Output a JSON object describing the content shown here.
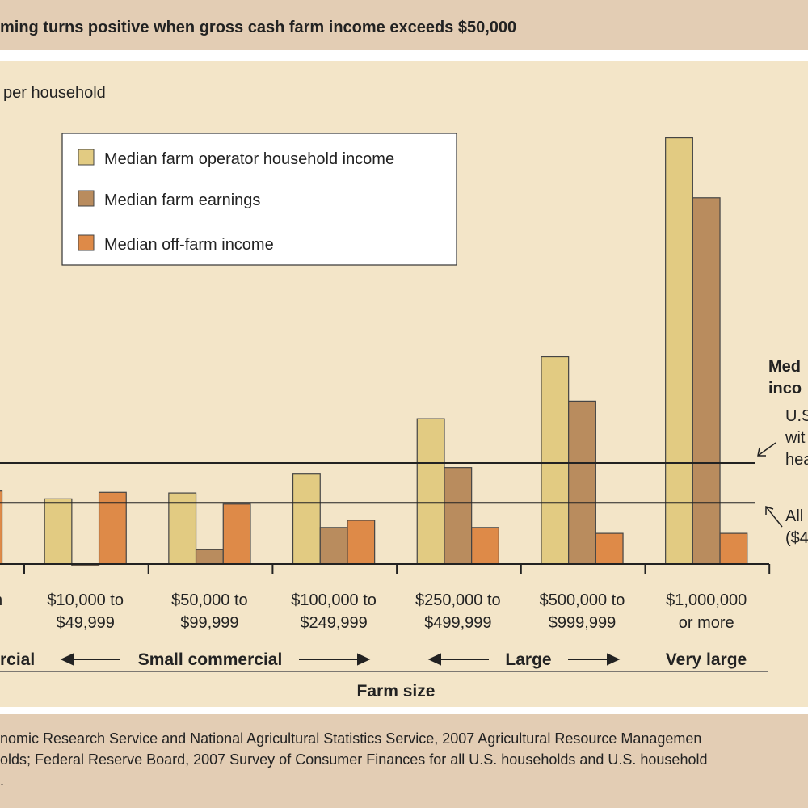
{
  "chart_data": {
    "type": "bar",
    "title": "ming turns positive when gross cash farm income exceeds $50,000",
    "ylabel": "per household",
    "xlabel": "Farm size",
    "ylim": [
      0,
      340000
    ],
    "grid": false,
    "legend_position": "top-left",
    "categories": [
      {
        "line1": "",
        "line2": "",
        "partial_label": "n"
      },
      {
        "line1": "$10,000 to",
        "line2": "$49,999"
      },
      {
        "line1": "$50,000 to",
        "line2": "$99,999"
      },
      {
        "line1": "$100,000 to",
        "line2": "$249,999"
      },
      {
        "line1": "$250,000 to",
        "line2": "$499,999"
      },
      {
        "line1": "$500,000 to",
        "line2": "$999,999"
      },
      {
        "line1": "$1,000,000",
        "line2": "or more"
      }
    ],
    "series": [
      {
        "name": "Median farm operator household income",
        "color": "#e2cb82",
        "values": [
          null,
          50000,
          54500,
          69000,
          111500,
          159000,
          327000
        ]
      },
      {
        "name": "Median farm earnings",
        "color": "#b98c5e",
        "values": [
          null,
          -1200,
          11000,
          28000,
          74000,
          125000,
          281000
        ]
      },
      {
        "name": "Median off-farm income",
        "color": "#de8a48",
        "values": [
          56000,
          55000,
          46000,
          33500,
          28000,
          23500,
          23500
        ]
      }
    ],
    "reference_lines": [
      {
        "value": 77500,
        "label_bold": [
          "Med",
          "inco"
        ],
        "label": [
          "U.S",
          "wit",
          "hea"
        ]
      },
      {
        "value": 47000,
        "label": [
          "All",
          "($4"
        ]
      }
    ],
    "groups": [
      {
        "label": "rcial"
      },
      {
        "label": "Small commercial"
      },
      {
        "label": "Large"
      },
      {
        "label": "Very large"
      }
    ]
  },
  "footer": {
    "lines": [
      "nomic Research Service and National Agricultural Statistics Service, 2007 Agricultural Resource Managemen",
      "olds; Federal Reserve Board, 2007 Survey of Consumer Finances for all U.S. households and U.S. household",
      "."
    ]
  }
}
